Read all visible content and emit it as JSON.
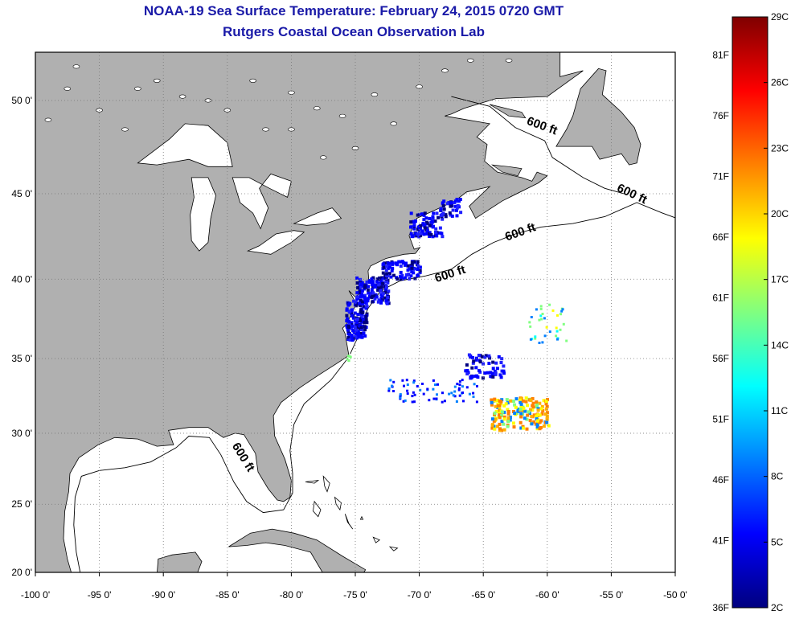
{
  "title": "NOAA-19 Sea Surface Temperature:  February 24, 2015 0720 GMT",
  "subtitle": "Rutgers Coastal Ocean Observation Lab",
  "map": {
    "lon_range": [
      -100,
      -50
    ],
    "lat_range": [
      20,
      52.5
    ],
    "grid": true,
    "land_color": "#b0b0b0",
    "ocean_color": "#ffffff",
    "x_ticks": [
      {
        "lon": -100,
        "label": "-100 0'"
      },
      {
        "lon": -95,
        "label": "-95 0'"
      },
      {
        "lon": -90,
        "label": "-90 0'"
      },
      {
        "lon": -85,
        "label": "-85 0'"
      },
      {
        "lon": -80,
        "label": "-80 0'"
      },
      {
        "lon": -75,
        "label": "-75 0'"
      },
      {
        "lon": -70,
        "label": "-70 0'"
      },
      {
        "lon": -65,
        "label": "-65 0'"
      },
      {
        "lon": -60,
        "label": "-60 0'"
      },
      {
        "lon": -55,
        "label": "-55 0'"
      },
      {
        "lon": -50,
        "label": "-50 0'"
      }
    ],
    "y_ticks": [
      {
        "lat": 20,
        "label": "20 0'"
      },
      {
        "lat": 25,
        "label": "25 0'"
      },
      {
        "lat": 30,
        "label": "30 0'"
      },
      {
        "lat": 35,
        "label": "35 0'"
      },
      {
        "lat": 40,
        "label": "40 0'"
      },
      {
        "lat": 45,
        "label": "45 0'"
      },
      {
        "lat": 50,
        "label": "50 0'"
      }
    ],
    "contour_labels": [
      {
        "text": "600 ft",
        "lon": -60.5,
        "lat": 48.5,
        "rotate": 20
      },
      {
        "text": "600 ft",
        "lon": -53.5,
        "lat": 44.8,
        "rotate": 25
      },
      {
        "text": "600 ft",
        "lon": -62,
        "lat": 42.6,
        "rotate": -20
      },
      {
        "text": "600 ft",
        "lon": -67.5,
        "lat": 40.1,
        "rotate": -18
      },
      {
        "text": "600 ft",
        "lon": -84,
        "lat": 28.2,
        "rotate": 58
      }
    ]
  },
  "colorbar": {
    "scale": [
      "#00007f",
      "#0000ff",
      "#0080ff",
      "#00ffff",
      "#80ff80",
      "#ffff00",
      "#ff8000",
      "#ff0000",
      "#7f0000"
    ],
    "celsius_labels": [
      "2C",
      "5C",
      "8C",
      "11C",
      "14C",
      "17C",
      "20C",
      "23C",
      "26C",
      "29C"
    ],
    "fahrenheit_labels": [
      "36F",
      "41F",
      "46F",
      "51F",
      "56F",
      "61F",
      "66F",
      "71F",
      "76F",
      "81F"
    ]
  }
}
